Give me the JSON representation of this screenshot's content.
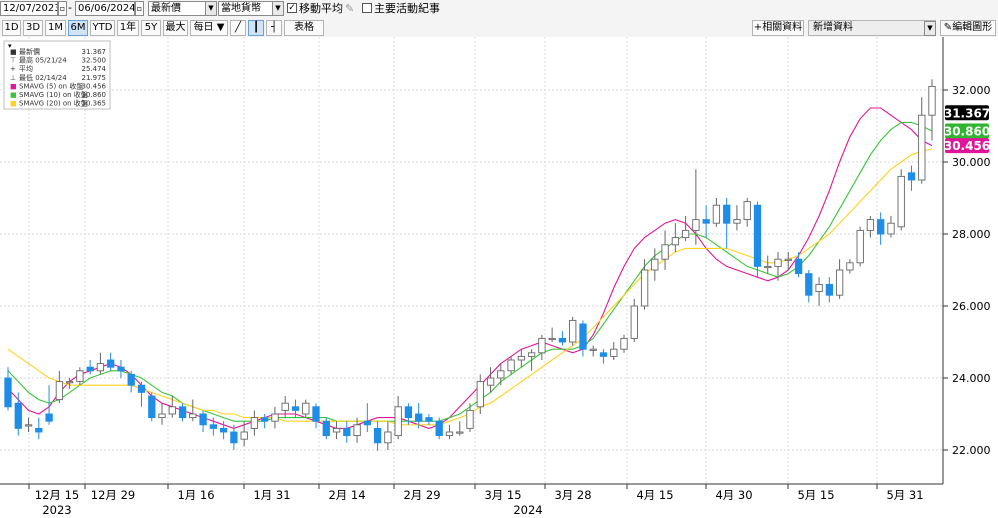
{
  "toolbar": {
    "start_date": "12/07/2023",
    "end_date": "06/06/2024",
    "price_type": "最新價",
    "currency": "當地貨幣",
    "moving_avg_checked": true,
    "moving_avg_label": "移動平均",
    "events_label": "主要活動紀事",
    "periods": [
      "1D",
      "3D",
      "1M",
      "6M",
      "YTD",
      "1年",
      "5Y",
      "最大",
      "每日 ▼"
    ],
    "active_period": "6M",
    "table_label": "表格",
    "related_label": "相關資料",
    "news_label": "新增資料",
    "edit_label": "編輯圖形",
    "colors": {
      "accent": "#1e90ff",
      "active_bg": "#cfe4f7"
    }
  },
  "legend": [
    {
      "symbol": "■",
      "label": "最新價",
      "value": "31.367"
    },
    {
      "symbol": "⊤",
      "label": "最高 05/21/24",
      "value": "32.500"
    },
    {
      "symbol": "+",
      "label": "平均",
      "value": "25.474"
    },
    {
      "symbol": "⊥",
      "label": "最低 02/14/24",
      "value": "21.975"
    },
    {
      "symbol": "■",
      "label": "SMAVG (5)  on 收盤",
      "value": "30.456",
      "color": "#e0169a"
    },
    {
      "symbol": "■",
      "label": "SMAVG (10)  on 收盤",
      "value": "30.860",
      "color": "#3cc43c"
    },
    {
      "symbol": "■",
      "label": "SMAVG (20)  on 收盤",
      "value": "30.365",
      "color": "#ffd21e"
    }
  ],
  "chart_data": {
    "type": "candlestick",
    "x_tick_labels": [
      "12月 15",
      "12月 29",
      "1月 16",
      "1月 31",
      "2月 14",
      "2月 29",
      "3月 15",
      "3月 28",
      "4月 15",
      "4月 30",
      "5月 15",
      "5月 31"
    ],
    "year_labels": [
      "2023",
      "2024"
    ],
    "y_ticks": [
      "22.000",
      "24.000",
      "26.000",
      "28.000",
      "30.000",
      "32.000"
    ],
    "ylim": [
      21,
      33
    ],
    "grid": true,
    "last_labels": [
      {
        "value": "31.367",
        "num": 31.367,
        "color": "#000000"
      },
      {
        "value": "30.860",
        "num": 30.86,
        "color": "#2fb52f"
      },
      {
        "value": "30.456",
        "num": 30.456,
        "color": "#e0169a"
      }
    ],
    "series": [
      {
        "name": "SMAVG (5)",
        "color": "#e0169a",
        "values": [
          23.7,
          23.4,
          23.1,
          23.0,
          23.2,
          23.6,
          23.9,
          24.1,
          24.2,
          24.3,
          24.4,
          24.3,
          24.1,
          23.8,
          23.5,
          23.3,
          23.2,
          23.1,
          23.0,
          22.9,
          22.8,
          22.7,
          22.6,
          22.7,
          22.8,
          22.9,
          23.0,
          23.0,
          23.0,
          22.9,
          22.8,
          22.7,
          22.6,
          22.6,
          22.7,
          22.8,
          22.9,
          22.9,
          22.9,
          22.8,
          22.7,
          22.6,
          22.7,
          22.9,
          23.2,
          23.5,
          23.8,
          24.1,
          24.4,
          24.6,
          24.8,
          24.9,
          25.0,
          24.9,
          24.8,
          24.7,
          24.8,
          25.2,
          25.8,
          26.5,
          27.1,
          27.6,
          27.9,
          28.1,
          28.3,
          28.4,
          28.3,
          28.0,
          27.6,
          27.3,
          27.1,
          27.0,
          26.9,
          26.8,
          26.7,
          26.8,
          27.0,
          27.4,
          27.9,
          28.5,
          29.2,
          30.0,
          30.7,
          31.2,
          31.5,
          31.5,
          31.3,
          31.1,
          30.9,
          30.6,
          30.456
        ]
      },
      {
        "name": "SMAVG (10)",
        "color": "#3cc43c",
        "values": [
          24.2,
          23.9,
          23.6,
          23.4,
          23.3,
          23.4,
          23.6,
          23.8,
          24.0,
          24.1,
          24.2,
          24.2,
          24.1,
          24.0,
          23.8,
          23.6,
          23.5,
          23.3,
          23.2,
          23.1,
          23.0,
          22.9,
          22.8,
          22.8,
          22.8,
          22.8,
          22.9,
          22.9,
          22.9,
          22.9,
          22.9,
          22.9,
          22.8,
          22.8,
          22.8,
          22.8,
          22.8,
          22.8,
          22.8,
          22.8,
          22.8,
          22.8,
          22.8,
          22.9,
          23.0,
          23.2,
          23.4,
          23.6,
          23.9,
          24.1,
          24.3,
          24.5,
          24.7,
          24.8,
          24.8,
          24.8,
          24.9,
          25.1,
          25.5,
          25.9,
          26.3,
          26.7,
          27.1,
          27.4,
          27.6,
          27.8,
          28.0,
          28.0,
          27.9,
          27.7,
          27.5,
          27.3,
          27.1,
          27.0,
          26.9,
          26.8,
          26.9,
          27.1,
          27.4,
          27.8,
          28.2,
          28.7,
          29.2,
          29.7,
          30.2,
          30.6,
          30.9,
          31.1,
          31.1,
          31.0,
          30.86
        ]
      },
      {
        "name": "SMAVG (20)",
        "color": "#ffd21e",
        "values": [
          24.8,
          24.6,
          24.4,
          24.2,
          24.0,
          23.9,
          23.8,
          23.8,
          23.8,
          23.8,
          23.8,
          23.8,
          23.8,
          23.7,
          23.6,
          23.5,
          23.4,
          23.3,
          23.2,
          23.1,
          23.1,
          23.0,
          23.0,
          22.9,
          22.9,
          22.9,
          22.9,
          22.8,
          22.8,
          22.8,
          22.8,
          22.8,
          22.8,
          22.8,
          22.8,
          22.8,
          22.8,
          22.8,
          22.7,
          22.7,
          22.7,
          22.7,
          22.7,
          22.8,
          22.9,
          23.0,
          23.2,
          23.3,
          23.5,
          23.7,
          23.9,
          24.1,
          24.3,
          24.5,
          24.7,
          24.9,
          25.1,
          25.4,
          25.7,
          26.0,
          26.3,
          26.6,
          26.9,
          27.1,
          27.3,
          27.5,
          27.6,
          27.6,
          27.6,
          27.6,
          27.6,
          27.5,
          27.4,
          27.3,
          27.2,
          27.2,
          27.3,
          27.4,
          27.6,
          27.8,
          28.0,
          28.3,
          28.6,
          28.9,
          29.2,
          29.5,
          29.8,
          30.0,
          30.2,
          30.3,
          30.365
        ]
      }
    ],
    "candles": [
      [
        24.0,
        23.2,
        24.3,
        23.1
      ],
      [
        23.3,
        22.6,
        23.6,
        22.4
      ],
      [
        22.7,
        22.7,
        22.9,
        22.5
      ],
      [
        22.6,
        22.5,
        22.9,
        22.3
      ],
      [
        23.0,
        22.8,
        23.8,
        22.7
      ],
      [
        23.4,
        23.9,
        24.2,
        23.3
      ],
      [
        23.9,
        23.9,
        24.0,
        23.7
      ],
      [
        23.9,
        24.2,
        24.3,
        23.8
      ],
      [
        24.3,
        24.2,
        24.5,
        24.1
      ],
      [
        24.2,
        24.4,
        24.7,
        24.1
      ],
      [
        24.5,
        24.3,
        24.7,
        24.2
      ],
      [
        24.3,
        24.2,
        24.5,
        24.0
      ],
      [
        24.1,
        23.8,
        24.2,
        23.6
      ],
      [
        23.8,
        23.6,
        23.9,
        23.2
      ],
      [
        23.5,
        22.9,
        23.6,
        22.8
      ],
      [
        22.9,
        23.0,
        23.3,
        22.7
      ],
      [
        23.0,
        23.2,
        23.5,
        22.9
      ],
      [
        23.2,
        22.9,
        23.3,
        22.8
      ],
      [
        22.9,
        23.0,
        23.4,
        22.8
      ],
      [
        23.0,
        22.7,
        23.1,
        22.5
      ],
      [
        22.7,
        22.6,
        22.9,
        22.4
      ],
      [
        22.6,
        22.5,
        22.8,
        22.3
      ],
      [
        22.5,
        22.2,
        22.7,
        22.0
      ],
      [
        22.3,
        22.5,
        22.8,
        22.1
      ],
      [
        22.6,
        22.9,
        23.1,
        22.4
      ],
      [
        22.9,
        22.8,
        23.0,
        22.6
      ],
      [
        22.8,
        23.0,
        23.2,
        22.6
      ],
      [
        23.1,
        23.3,
        23.5,
        22.9
      ],
      [
        23.2,
        23.1,
        23.4,
        22.9
      ],
      [
        23.0,
        23.3,
        23.4,
        22.9
      ],
      [
        23.2,
        22.8,
        23.3,
        22.6
      ],
      [
        22.8,
        22.4,
        22.9,
        22.3
      ],
      [
        22.5,
        22.6,
        22.8,
        22.3
      ],
      [
        22.6,
        22.4,
        22.8,
        22.2
      ],
      [
        22.4,
        22.7,
        22.9,
        22.2
      ],
      [
        22.8,
        22.7,
        23.3,
        22.5
      ],
      [
        22.6,
        22.2,
        22.8,
        21.975
      ],
      [
        22.2,
        22.5,
        22.8,
        22.0
      ],
      [
        22.4,
        23.2,
        23.5,
        22.3
      ],
      [
        23.2,
        22.9,
        23.3,
        22.7
      ],
      [
        23.0,
        22.8,
        23.3,
        22.6
      ],
      [
        22.9,
        22.8,
        23.0,
        22.7
      ],
      [
        22.8,
        22.4,
        22.9,
        22.3
      ],
      [
        22.4,
        22.5,
        22.7,
        22.3
      ],
      [
        22.5,
        22.5,
        22.8,
        22.4
      ],
      [
        22.6,
        23.1,
        23.3,
        22.5
      ],
      [
        23.2,
        23.9,
        24.1,
        23.0
      ],
      [
        23.8,
        24.0,
        24.3,
        23.6
      ],
      [
        24.0,
        24.2,
        24.4,
        23.8
      ],
      [
        24.2,
        24.5,
        24.6,
        24.1
      ],
      [
        24.5,
        24.6,
        24.8,
        24.3
      ],
      [
        24.6,
        24.7,
        24.8,
        24.2
      ],
      [
        24.7,
        25.1,
        25.2,
        24.5
      ],
      [
        25.1,
        25.1,
        25.4,
        25.0
      ],
      [
        25.1,
        25.0,
        25.3,
        24.9
      ],
      [
        25.0,
        25.6,
        25.7,
        24.9
      ],
      [
        25.5,
        24.8,
        25.6,
        24.6
      ],
      [
        24.8,
        24.8,
        24.9,
        24.6
      ],
      [
        24.7,
        24.6,
        24.8,
        24.4
      ],
      [
        24.6,
        24.8,
        25.0,
        24.5
      ],
      [
        24.8,
        25.1,
        25.2,
        24.7
      ],
      [
        25.1,
        26.0,
        26.2,
        25.0
      ],
      [
        26.0,
        27.0,
        27.3,
        25.9
      ],
      [
        27.0,
        27.3,
        27.6,
        26.7
      ],
      [
        27.3,
        27.7,
        28.1,
        27.0
      ],
      [
        27.7,
        27.9,
        28.3,
        27.5
      ],
      [
        27.9,
        28.1,
        28.5,
        27.8
      ],
      [
        28.1,
        28.4,
        29.8,
        27.7
      ],
      [
        28.4,
        28.3,
        28.8,
        27.9
      ],
      [
        28.3,
        28.8,
        29.0,
        28.2
      ],
      [
        28.8,
        28.3,
        29.0,
        27.6
      ],
      [
        28.3,
        28.4,
        28.8,
        28.1
      ],
      [
        28.4,
        28.9,
        29.0,
        28.2
      ],
      [
        28.8,
        27.1,
        28.9,
        26.8
      ],
      [
        27.1,
        27.1,
        27.4,
        26.9
      ],
      [
        27.1,
        27.3,
        27.5,
        26.7
      ],
      [
        27.3,
        27.3,
        27.5,
        27.0
      ],
      [
        27.3,
        26.9,
        27.5,
        26.8
      ],
      [
        26.9,
        26.3,
        27.0,
        26.1
      ],
      [
        26.4,
        26.6,
        26.8,
        26.0
      ],
      [
        26.6,
        26.3,
        26.8,
        26.1
      ],
      [
        26.3,
        27.0,
        27.3,
        26.2
      ],
      [
        27.0,
        27.2,
        27.3,
        26.9
      ],
      [
        27.2,
        28.1,
        28.2,
        27.1
      ],
      [
        28.1,
        28.4,
        28.5,
        27.9
      ],
      [
        28.4,
        28.0,
        28.6,
        27.7
      ],
      [
        28.0,
        28.3,
        28.5,
        27.9
      ],
      [
        28.2,
        29.6,
        29.8,
        28.1
      ],
      [
        29.7,
        29.5,
        29.9,
        29.2
      ],
      [
        29.5,
        31.3,
        31.8,
        29.4
      ],
      [
        31.3,
        32.1,
        32.3,
        30.6
      ]
    ]
  }
}
